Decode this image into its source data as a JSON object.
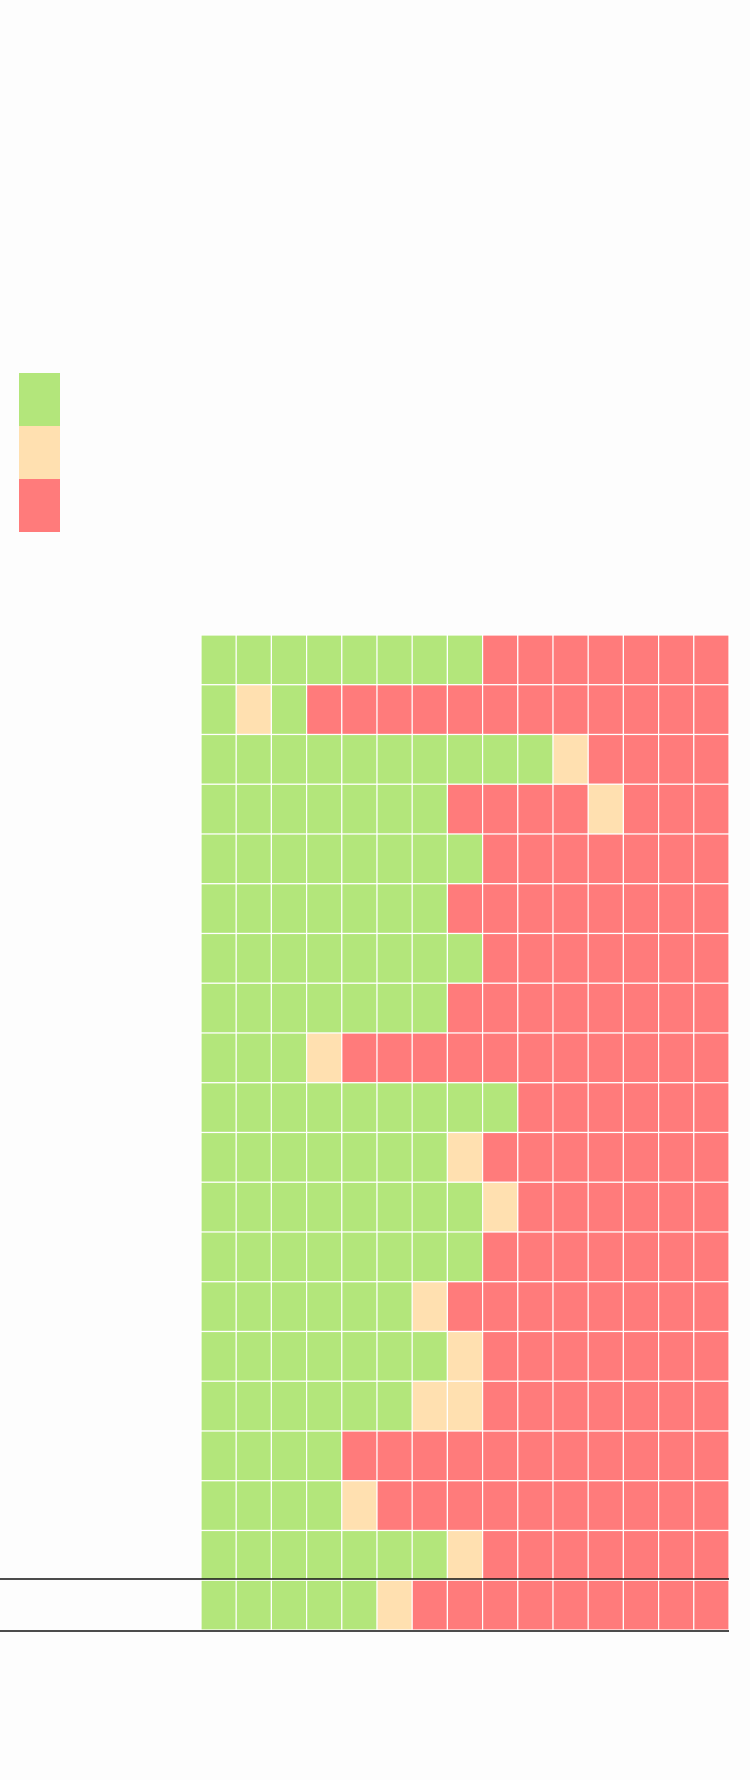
{
  "legend": {
    "colors": [
      "#b3e67b",
      "#ffe0b0",
      "#ff7b7b"
    ]
  },
  "grid": {
    "rows": [
      [
        0,
        0,
        0,
        0,
        0,
        0,
        0,
        0,
        2,
        2,
        2,
        2,
        2,
        2,
        2
      ],
      [
        0,
        1,
        0,
        2,
        2,
        2,
        2,
        2,
        2,
        2,
        2,
        2,
        2,
        2,
        2
      ],
      [
        0,
        0,
        0,
        0,
        0,
        0,
        0,
        0,
        0,
        0,
        1,
        2,
        2,
        2,
        2
      ],
      [
        0,
        0,
        0,
        0,
        0,
        0,
        0,
        2,
        2,
        2,
        2,
        1,
        2,
        2,
        2
      ],
      [
        0,
        0,
        0,
        0,
        0,
        0,
        0,
        0,
        2,
        2,
        2,
        2,
        2,
        2,
        2
      ],
      [
        0,
        0,
        0,
        0,
        0,
        0,
        0,
        2,
        2,
        2,
        2,
        2,
        2,
        2,
        2
      ],
      [
        0,
        0,
        0,
        0,
        0,
        0,
        0,
        0,
        2,
        2,
        2,
        2,
        2,
        2,
        2
      ],
      [
        0,
        0,
        0,
        0,
        0,
        0,
        0,
        2,
        2,
        2,
        2,
        2,
        2,
        2,
        2
      ],
      [
        0,
        0,
        0,
        1,
        2,
        2,
        2,
        2,
        2,
        2,
        2,
        2,
        2,
        2,
        2
      ],
      [
        0,
        0,
        0,
        0,
        0,
        0,
        0,
        0,
        0,
        2,
        2,
        2,
        2,
        2,
        2
      ],
      [
        0,
        0,
        0,
        0,
        0,
        0,
        0,
        1,
        2,
        2,
        2,
        2,
        2,
        2,
        2
      ],
      [
        0,
        0,
        0,
        0,
        0,
        0,
        0,
        0,
        1,
        2,
        2,
        2,
        2,
        2,
        2
      ],
      [
        0,
        0,
        0,
        0,
        0,
        0,
        0,
        0,
        2,
        2,
        2,
        2,
        2,
        2,
        2
      ],
      [
        0,
        0,
        0,
        0,
        0,
        0,
        1,
        2,
        2,
        2,
        2,
        2,
        2,
        2,
        2
      ],
      [
        0,
        0,
        0,
        0,
        0,
        0,
        0,
        1,
        2,
        2,
        2,
        2,
        2,
        2,
        2
      ],
      [
        0,
        0,
        0,
        0,
        0,
        0,
        1,
        1,
        2,
        2,
        2,
        2,
        2,
        2,
        2
      ],
      [
        0,
        0,
        0,
        0,
        2,
        2,
        2,
        2,
        2,
        2,
        2,
        2,
        2,
        2,
        2
      ],
      [
        0,
        0,
        0,
        0,
        1,
        2,
        2,
        2,
        2,
        2,
        2,
        2,
        2,
        2,
        2
      ],
      [
        0,
        0,
        0,
        0,
        0,
        0,
        0,
        1,
        2,
        2,
        2,
        2,
        2,
        2,
        2
      ],
      [
        0,
        0,
        0,
        0,
        0,
        1,
        2,
        2,
        2,
        2,
        2,
        2,
        2,
        2,
        2
      ]
    ]
  }
}
